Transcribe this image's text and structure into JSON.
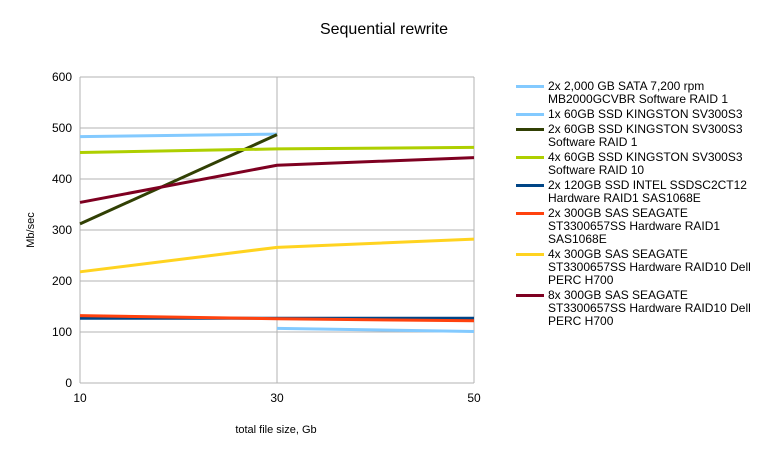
{
  "chart_data": {
    "type": "line",
    "title": "Sequential rewrite",
    "xlabel": "total file size, Gb",
    "ylabel": "Mb/sec",
    "x": [
      10,
      30,
      50
    ],
    "x_ticks": [
      "10",
      "30",
      "50"
    ],
    "ylim": [
      0,
      600
    ],
    "y_ticks": [
      "0",
      "100",
      "200",
      "300",
      "400",
      "500",
      "600"
    ],
    "grid": true,
    "legend_position": "right",
    "series": [
      {
        "name": "2x 2,000 GB SATA 7,200 rpm MB2000GCVBR Software RAID 1",
        "color": "#83caff",
        "values": [
          null,
          107,
          101
        ]
      },
      {
        "name": "1x 60GB SSD KINGSTON SV300S3",
        "color": "#83caff",
        "values": [
          483,
          488,
          null
        ]
      },
      {
        "name": "2x 60GB SSD KINGSTON SV300S3 Software RAID 1",
        "color": "#314004",
        "values": [
          312,
          487,
          null
        ]
      },
      {
        "name": "4x 60GB SSD KINGSTON SV300S3 Software RAID 10",
        "color": "#aecf00",
        "values": [
          452,
          459,
          462
        ]
      },
      {
        "name": "2x 120GB SSD INTEL SSDSC2CT12 Hardware RAID1 SAS1068E",
        "color": "#004586",
        "values": [
          127,
          127,
          127
        ]
      },
      {
        "name": "2x 300GB SAS SEAGATE ST3300657SS Hardware RAID1 SAS1068E",
        "color": "#ff420e",
        "values": [
          132,
          126,
          122
        ]
      },
      {
        "name": "4x 300GB SAS SEAGATE ST3300657SS Hardware RAID10 Dell PERC H700",
        "color": "#ffd320",
        "values": [
          218,
          266,
          282
        ]
      },
      {
        "name": "8x 300GB SAS SEAGATE ST3300657SS Hardware RAID10 Dell PERC H700",
        "color": "#7e0021",
        "values": [
          354,
          427,
          442
        ]
      }
    ]
  }
}
